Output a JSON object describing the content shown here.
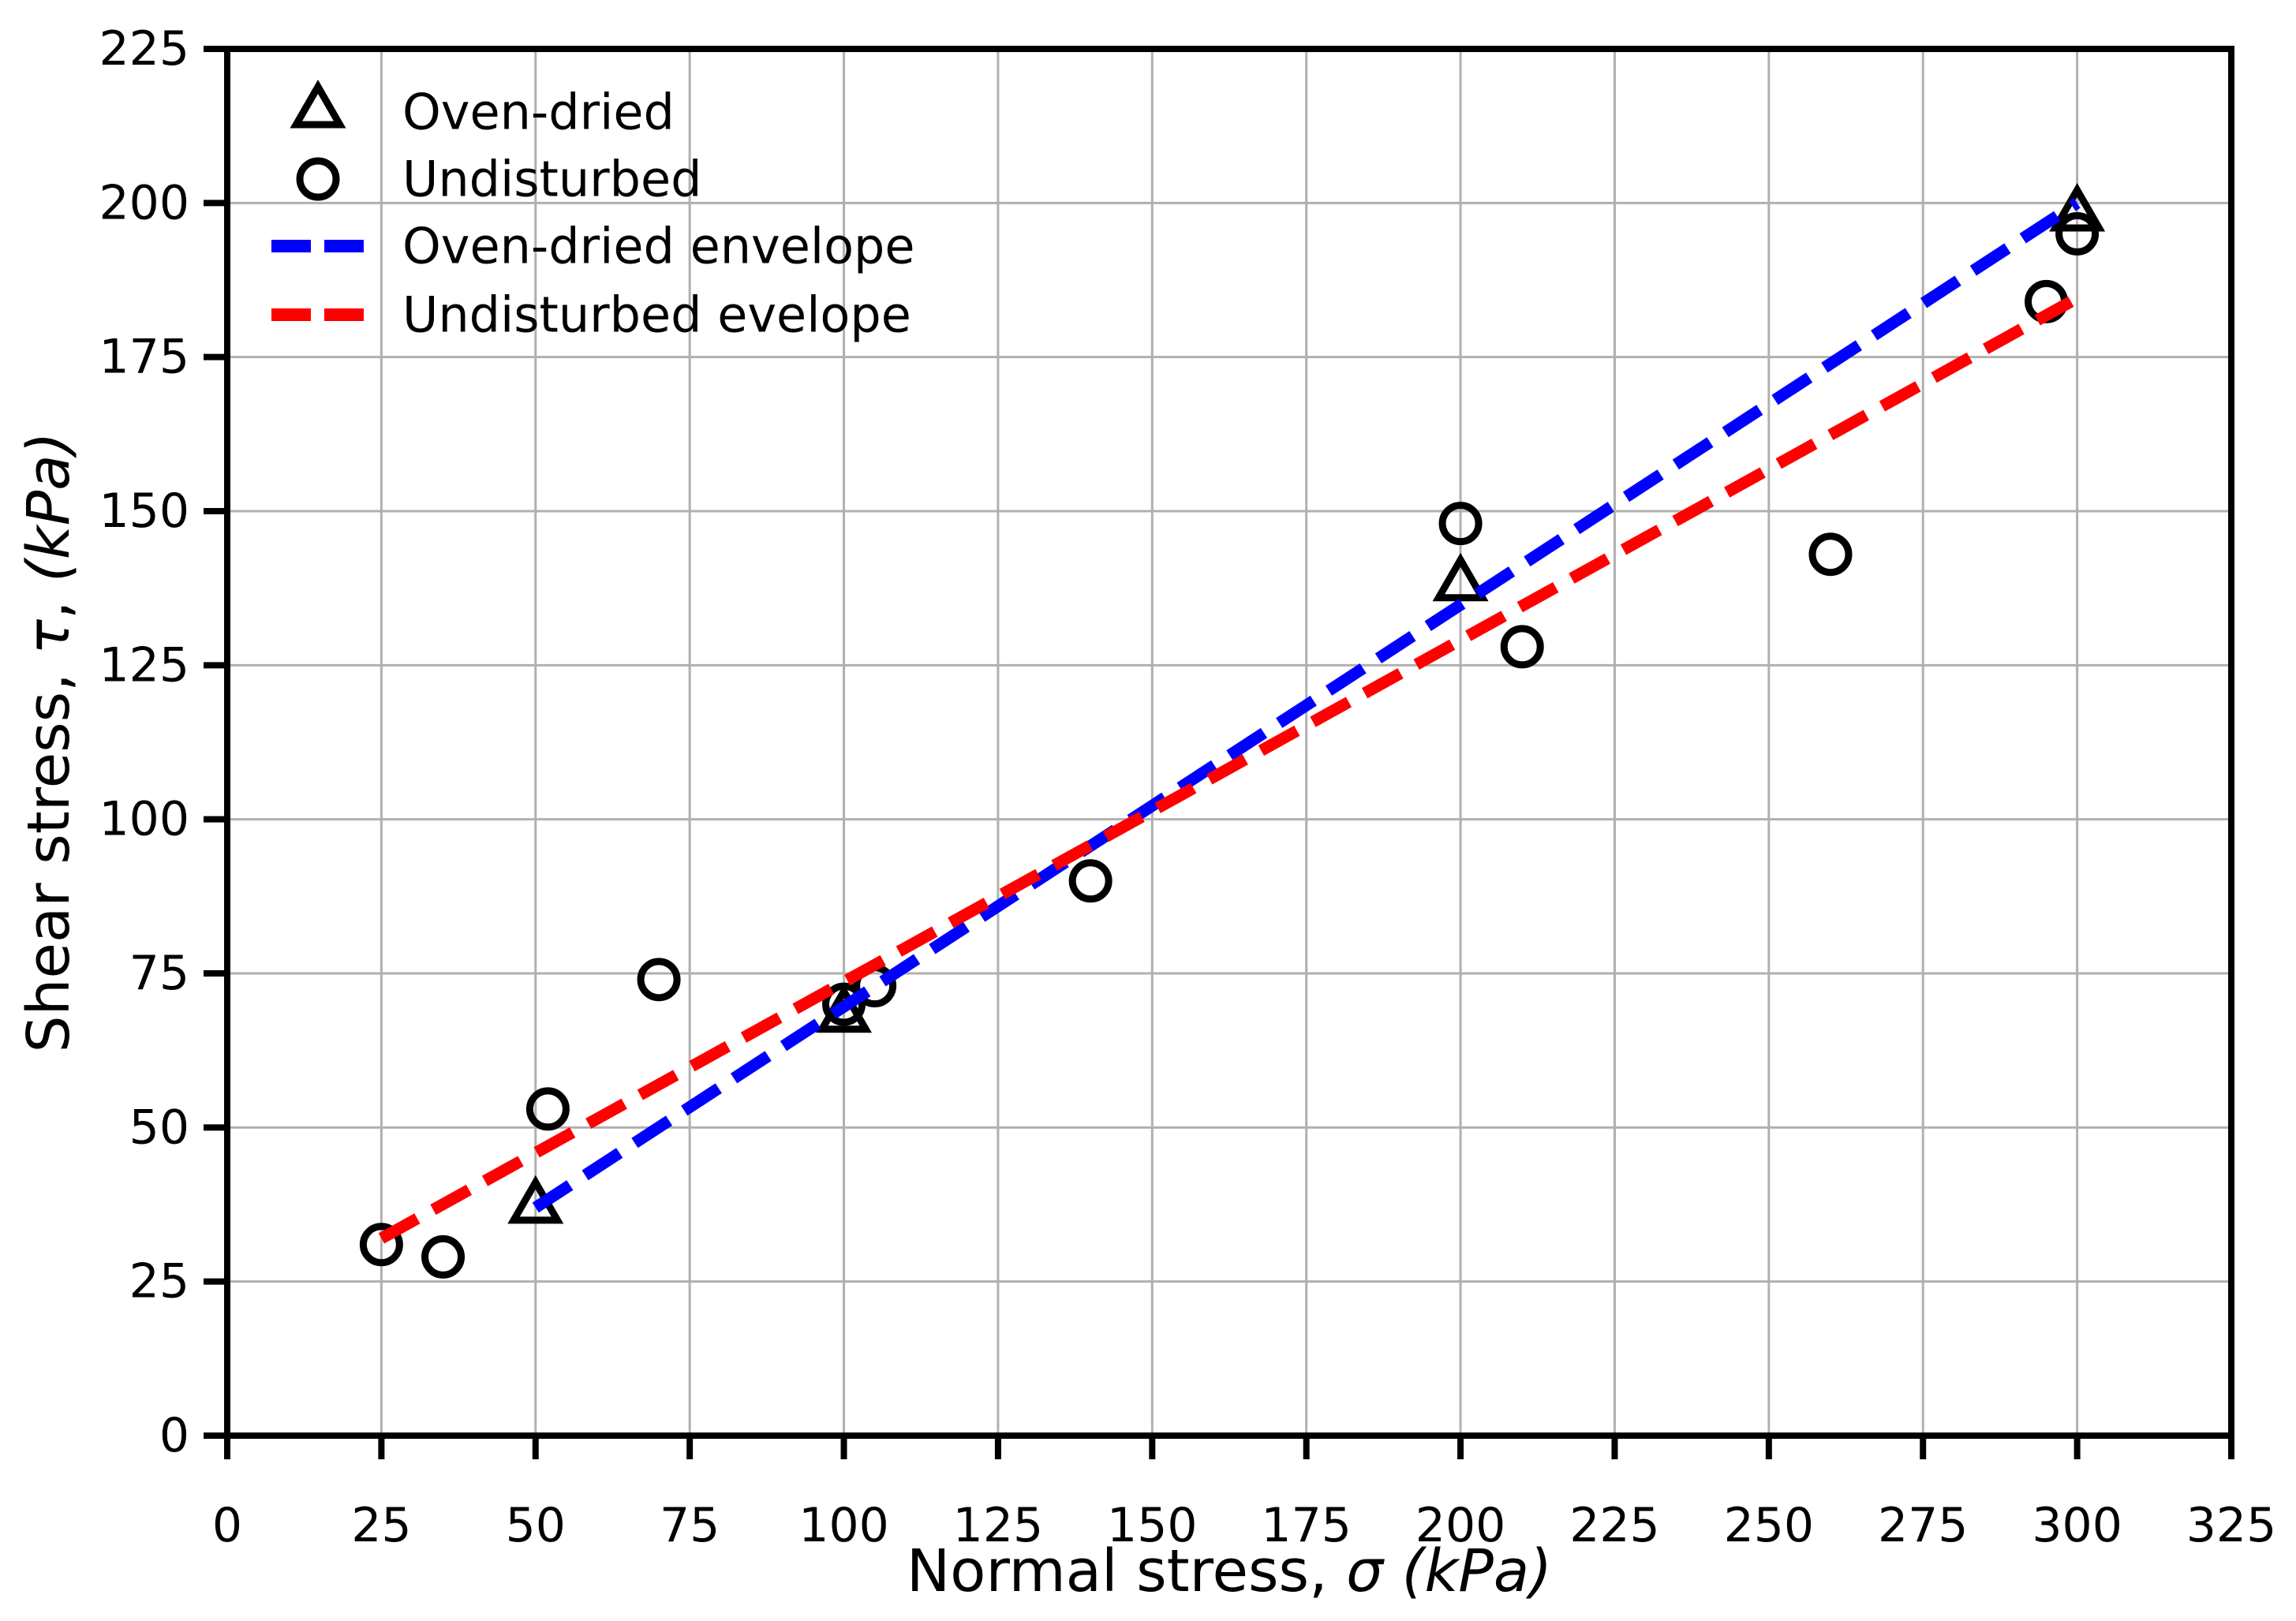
{
  "figure": {
    "background": "#ffffff",
    "grid_color": "#b0b0b0",
    "axis_color": "#000000",
    "blue": "#0000ff",
    "red": "#ff0000"
  },
  "chart_data": {
    "type": "scatter",
    "title": "",
    "xlabel": "Normal stress, σ (kPa)",
    "ylabel": "Shear stress, τ, (kPa)",
    "xlabel_parts": [
      {
        "t": "Normal stress, ",
        "i": false
      },
      {
        "t": "σ",
        "i": true
      },
      {
        "t": " ",
        "i": false
      },
      {
        "t": "(kPa)",
        "i": true
      }
    ],
    "ylabel_parts": [
      {
        "t": "Shear stress, ",
        "i": false
      },
      {
        "t": "τ",
        "i": true
      },
      {
        "t": ", ",
        "i": false
      },
      {
        "t": "(kPa)",
        "i": true
      }
    ],
    "xlim": [
      0,
      325
    ],
    "ylim": [
      0,
      225
    ],
    "xticks": [
      0,
      25,
      50,
      75,
      100,
      125,
      150,
      175,
      200,
      225,
      250,
      275,
      300,
      325
    ],
    "yticks": [
      0,
      25,
      50,
      75,
      100,
      125,
      150,
      175,
      200,
      225
    ],
    "grid": true,
    "legend_position": "upper-left",
    "series": [
      {
        "name": "Oven-dried",
        "kind": "scatter",
        "marker": "triangle",
        "color": "#000000",
        "points": [
          [
            50,
            37
          ],
          [
            100,
            68
          ],
          [
            200,
            138
          ],
          [
            300,
            198
          ]
        ]
      },
      {
        "name": "Undisturbed",
        "kind": "scatter",
        "marker": "circle",
        "color": "#000000",
        "points": [
          [
            25,
            31
          ],
          [
            35,
            29
          ],
          [
            52,
            53
          ],
          [
            70,
            74
          ],
          [
            100,
            70
          ],
          [
            105,
            73
          ],
          [
            140,
            90
          ],
          [
            200,
            148
          ],
          [
            210,
            128
          ],
          [
            260,
            143
          ],
          [
            295,
            184
          ],
          [
            300,
            195
          ]
        ]
      },
      {
        "name": "Oven-dried envelope",
        "kind": "line",
        "dashed": true,
        "color": "#0000ff",
        "points": [
          [
            50,
            37
          ],
          [
            300,
            200
          ]
        ]
      },
      {
        "name": "Undisturbed evelope",
        "kind": "line",
        "dashed": true,
        "color": "#ff0000",
        "points": [
          [
            25,
            32
          ],
          [
            299,
            184
          ]
        ]
      }
    ]
  }
}
